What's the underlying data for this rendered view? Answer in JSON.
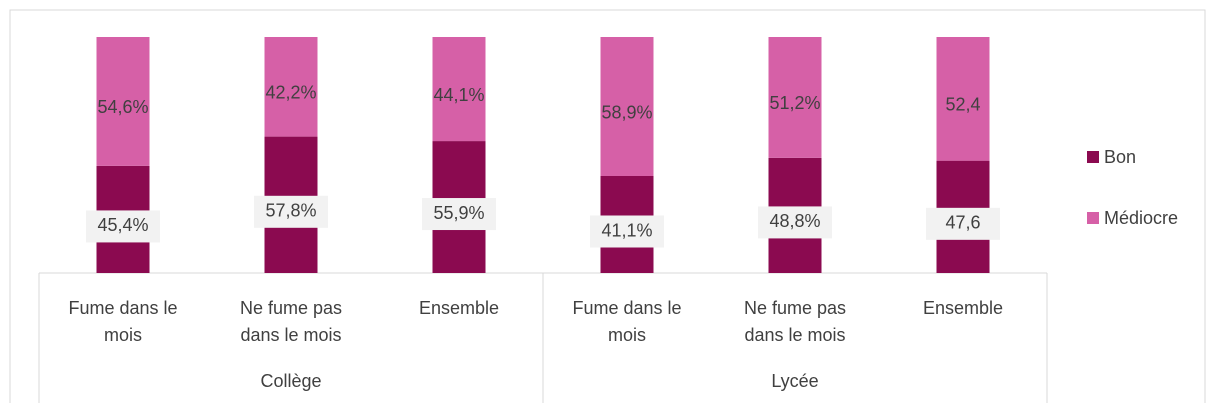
{
  "chart_data": {
    "type": "stacked_bar",
    "groups": [
      {
        "name": "Collège",
        "categories": [
          [
            "Fume dans le",
            "mois"
          ],
          [
            "Ne fume pas",
            "dans le mois"
          ],
          [
            "Ensemble"
          ]
        ]
      },
      {
        "name": "Lycée",
        "categories": [
          [
            "Fume dans le",
            "mois"
          ],
          [
            "Ne fume pas",
            "dans le mois"
          ],
          [
            "Ensemble"
          ]
        ]
      }
    ],
    "series": [
      {
        "name": "Bon",
        "color": "#8b0a50",
        "values": [
          45.4,
          57.8,
          55.9,
          41.1,
          48.8,
          47.6
        ],
        "value_labels": [
          "45,4%",
          "57,8%",
          "55,9%",
          "41,1%",
          "48,8%",
          "47,6"
        ]
      },
      {
        "name": "Médiocre",
        "color": "#d660a7",
        "values": [
          54.6,
          42.2,
          44.1,
          58.9,
          51.2,
          52.4
        ],
        "value_labels": [
          "54,6%",
          "42,2%",
          "44,1%",
          "58,9%",
          "51,2%",
          "52,4"
        ]
      }
    ],
    "ylim": [
      0,
      100
    ],
    "legend": "right"
  }
}
